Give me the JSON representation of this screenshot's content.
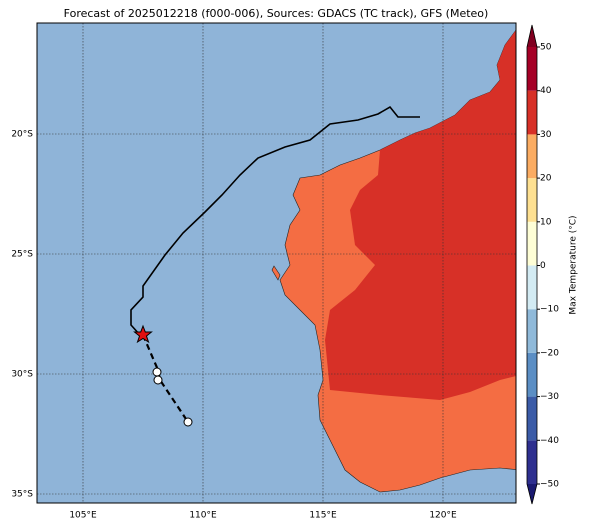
{
  "title": "Forecast of 2025012218 (f000-006), Sources: GDACS (TC track), GFS (Meteo)",
  "map": {
    "lon_ticks": [
      {
        "value": 105,
        "label": "105°E"
      },
      {
        "value": 110,
        "label": "110°E"
      },
      {
        "value": 115,
        "label": "115°E"
      },
      {
        "value": 120,
        "label": "120°E"
      }
    ],
    "lat_ticks": [
      {
        "value": -20,
        "label": "20°S"
      },
      {
        "value": -25,
        "label": "25°S"
      },
      {
        "value": -30,
        "label": "30°S"
      },
      {
        "value": -35,
        "label": "35°S"
      }
    ]
  },
  "colorbar": {
    "label": "Max Temperature (°C)",
    "ticks": [
      {
        "value": -50,
        "label": "−50"
      },
      {
        "value": -40,
        "label": "−40"
      },
      {
        "value": -30,
        "label": "−30"
      },
      {
        "value": -20,
        "label": "−20"
      },
      {
        "value": -10,
        "label": "−10"
      },
      0,
      10,
      20,
      30,
      40,
      50
    ],
    "colors": [
      "#2e2f8f",
      "#3b5ba7",
      "#5b8ec4",
      "#8fb9d9",
      "#d3ebf3",
      "#fefed6",
      "#fee091",
      "#fbac62",
      "#d73027",
      "#a50026"
    ],
    "under_color": "#1a1a70",
    "over_color": "#800020"
  }
}
